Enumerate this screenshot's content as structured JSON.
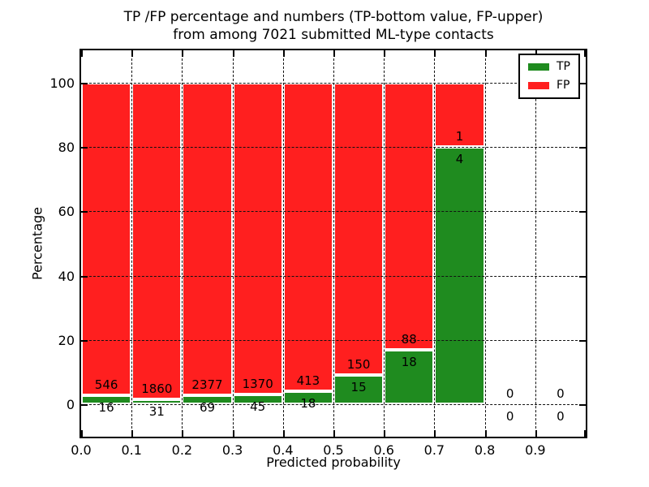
{
  "title": {
    "line1": "TP /FP percentage and numbers (TP-bottom value, FP-upper)",
    "line2": "from among 7021 submitted ML-type contacts"
  },
  "axes": {
    "xlabel": "Predicted probability",
    "ylabel": "Percentage",
    "x_tick_labels": [
      "0.0",
      "0.1",
      "0.2",
      "0.3",
      "0.4",
      "0.5",
      "0.6",
      "0.7",
      "0.8",
      "0.9"
    ],
    "y_tick_labels": [
      "0",
      "20",
      "40",
      "60",
      "80",
      "100"
    ]
  },
  "chart_data": {
    "type": "bar",
    "stacked": true,
    "title": "TP /FP percentage and numbers (TP-bottom value, FP-upper) from among 7021 submitted ML-type contacts",
    "xlabel": "Predicted probability",
    "ylabel": "Percentage",
    "xlim": [
      0.0,
      1.0
    ],
    "ylim": [
      -10,
      110
    ],
    "grid": "dotted",
    "legend_position": "upper right",
    "total_contacts": 7021,
    "bin_width": 0.1,
    "bin_starts": [
      0.0,
      0.1,
      0.2,
      0.3,
      0.4,
      0.5,
      0.6,
      0.7,
      0.8,
      0.9
    ],
    "categories": [
      "0.0-0.1",
      "0.1-0.2",
      "0.2-0.3",
      "0.3-0.4",
      "0.4-0.5",
      "0.5-0.6",
      "0.6-0.7",
      "0.7-0.8",
      "0.8-0.9",
      "0.9-1.0"
    ],
    "series": [
      {
        "name": "TP",
        "color": "#1f8b1f",
        "counts": [
          16,
          31,
          69,
          45,
          18,
          15,
          18,
          4,
          0,
          0
        ]
      },
      {
        "name": "FP",
        "color": "#ff1f1f",
        "counts": [
          546,
          1860,
          2377,
          1370,
          413,
          150,
          88,
          1,
          0,
          0
        ]
      }
    ],
    "tp_percent_by_bin": [
      2.85,
      1.64,
      2.82,
      3.18,
      4.18,
      9.09,
      16.98,
      80.0,
      0,
      0
    ],
    "bar_edge_color": "#ffffff",
    "y_gridline_values": [
      0,
      20,
      40,
      60,
      80,
      100
    ]
  }
}
